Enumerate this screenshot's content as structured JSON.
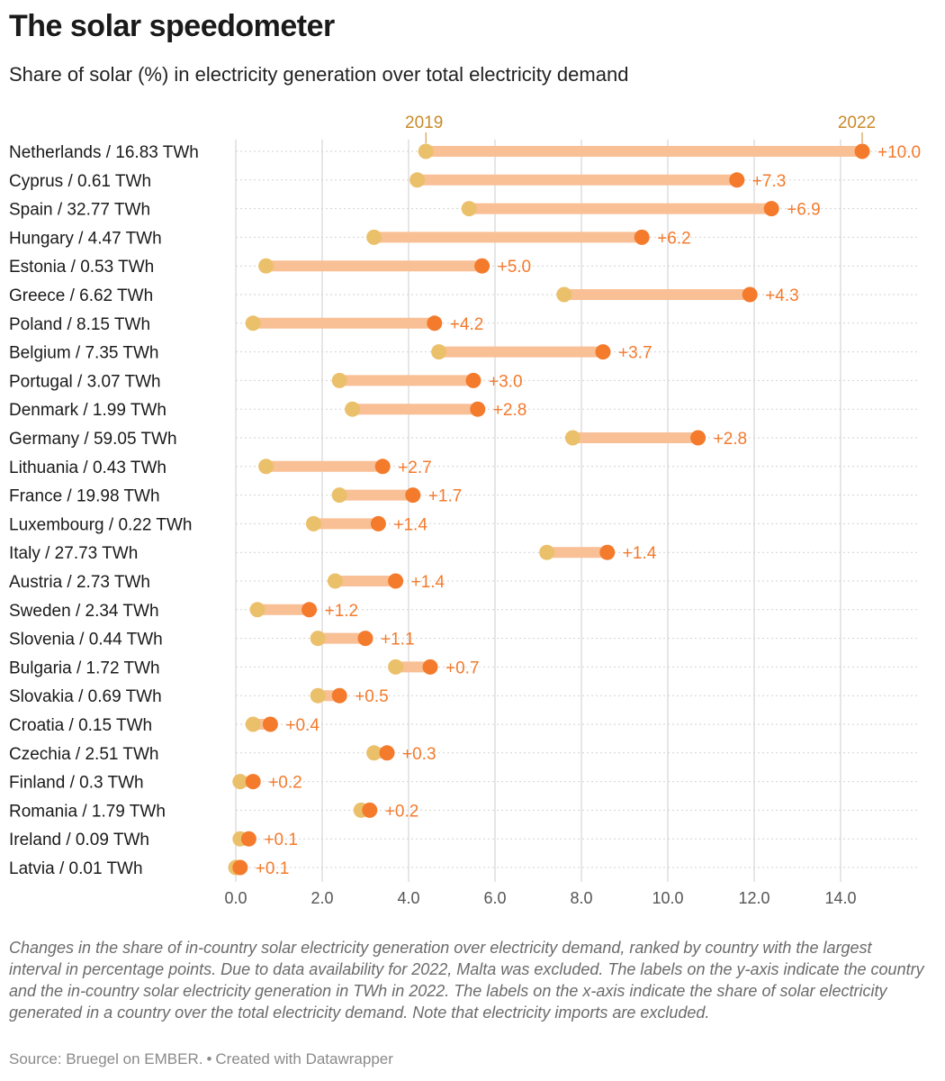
{
  "title": "The solar speedometer",
  "subtitle": "Share of solar (%) in electricity generation over total electricity demand",
  "notes": "Changes in the share of in-country solar electricity generation over electricity demand, ranked by country with the largest interval in percentage points. Due to data availability for 2022, Malta was excluded. The labels on the y-axis indicate the country and the in-country solar electricity generation in TWh in 2022. The labels on the x-axis indicate the share of solar electricity generated in a country over the total electricity demand. Note that electricity imports are excluded.",
  "source": "Source: Bruegel on EMBER.",
  "credit": "Created with Datawrapper",
  "colors": {
    "y2019": "#ebc06a",
    "y2022": "#f47a2c",
    "bar": "#f9bf95",
    "label": "#f47a2c",
    "year_label": "#c98a2a",
    "grid": "#cccccc",
    "row_line": "#d2d2d2"
  },
  "chart_data": {
    "type": "range-dot",
    "series": [
      {
        "name": "2019"
      },
      {
        "name": "2022"
      }
    ],
    "xlim": [
      0,
      16
    ],
    "xticks": [
      "0.0",
      "2.0",
      "4.0",
      "6.0",
      "8.0",
      "10.0",
      "12.0",
      "14.0"
    ],
    "xtick_values": [
      0,
      2,
      4,
      6,
      8,
      10,
      12,
      14
    ],
    "rows": [
      {
        "label": "Netherlands / 16.83 TWh",
        "v2019": 4.4,
        "v2022": 14.5,
        "delta": "+10.0"
      },
      {
        "label": "Cyprus / 0.61 TWh",
        "v2019": 4.2,
        "v2022": 11.6,
        "delta": "+7.3"
      },
      {
        "label": "Spain / 32.77 TWh",
        "v2019": 5.4,
        "v2022": 12.4,
        "delta": "+6.9"
      },
      {
        "label": "Hungary / 4.47 TWh",
        "v2019": 3.2,
        "v2022": 9.4,
        "delta": "+6.2"
      },
      {
        "label": "Estonia / 0.53 TWh",
        "v2019": 0.7,
        "v2022": 5.7,
        "delta": "+5.0"
      },
      {
        "label": "Greece / 6.62 TWh",
        "v2019": 7.6,
        "v2022": 11.9,
        "delta": "+4.3"
      },
      {
        "label": "Poland / 8.15 TWh",
        "v2019": 0.4,
        "v2022": 4.6,
        "delta": "+4.2"
      },
      {
        "label": "Belgium / 7.35 TWh",
        "v2019": 4.7,
        "v2022": 8.5,
        "delta": "+3.7"
      },
      {
        "label": "Portugal / 3.07 TWh",
        "v2019": 2.4,
        "v2022": 5.5,
        "delta": "+3.0"
      },
      {
        "label": "Denmark / 1.99 TWh",
        "v2019": 2.7,
        "v2022": 5.6,
        "delta": "+2.8"
      },
      {
        "label": "Germany / 59.05 TWh",
        "v2019": 7.8,
        "v2022": 10.7,
        "delta": "+2.8"
      },
      {
        "label": "Lithuania / 0.43 TWh",
        "v2019": 0.7,
        "v2022": 3.4,
        "delta": "+2.7"
      },
      {
        "label": "France / 19.98 TWh",
        "v2019": 2.4,
        "v2022": 4.1,
        "delta": "+1.7"
      },
      {
        "label": "Luxembourg / 0.22 TWh",
        "v2019": 1.8,
        "v2022": 3.3,
        "delta": "+1.4"
      },
      {
        "label": "Italy / 27.73 TWh",
        "v2019": 7.2,
        "v2022": 8.6,
        "delta": "+1.4"
      },
      {
        "label": "Austria / 2.73 TWh",
        "v2019": 2.3,
        "v2022": 3.7,
        "delta": "+1.4"
      },
      {
        "label": "Sweden / 2.34 TWh",
        "v2019": 0.5,
        "v2022": 1.7,
        "delta": "+1.2"
      },
      {
        "label": "Slovenia / 0.44 TWh",
        "v2019": 1.9,
        "v2022": 3.0,
        "delta": "+1.1"
      },
      {
        "label": "Bulgaria / 1.72 TWh",
        "v2019": 3.7,
        "v2022": 4.5,
        "delta": "+0.7"
      },
      {
        "label": "Slovakia / 0.69 TWh",
        "v2019": 1.9,
        "v2022": 2.4,
        "delta": "+0.5"
      },
      {
        "label": "Croatia / 0.15 TWh",
        "v2019": 0.4,
        "v2022": 0.8,
        "delta": "+0.4"
      },
      {
        "label": "Czechia / 2.51 TWh",
        "v2019": 3.2,
        "v2022": 3.5,
        "delta": "+0.3"
      },
      {
        "label": "Finland / 0.3 TWh",
        "v2019": 0.1,
        "v2022": 0.4,
        "delta": "+0.2"
      },
      {
        "label": "Romania / 1.79 TWh",
        "v2019": 2.9,
        "v2022": 3.1,
        "delta": "+0.2"
      },
      {
        "label": "Ireland / 0.09 TWh",
        "v2019": 0.1,
        "v2022": 0.3,
        "delta": "+0.1"
      },
      {
        "label": "Latvia / 0.01 TWh",
        "v2019": 0.0,
        "v2022": 0.1,
        "delta": "+0.1"
      }
    ]
  }
}
